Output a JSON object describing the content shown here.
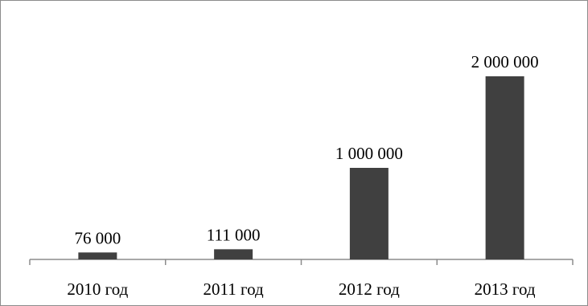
{
  "chart_data": {
    "type": "bar",
    "categories": [
      "2010 год",
      "2011 год",
      "2012 год",
      "2013 год"
    ],
    "values": [
      76000,
      111000,
      1000000,
      2000000
    ],
    "data_labels": [
      "76 000",
      "111 000",
      "1 000 000",
      "2 000 000"
    ],
    "ylim": [
      0,
      2000000
    ],
    "grid": false,
    "legend": "none",
    "bar_color": "#404040",
    "axis_color": "#8c8c8c"
  }
}
